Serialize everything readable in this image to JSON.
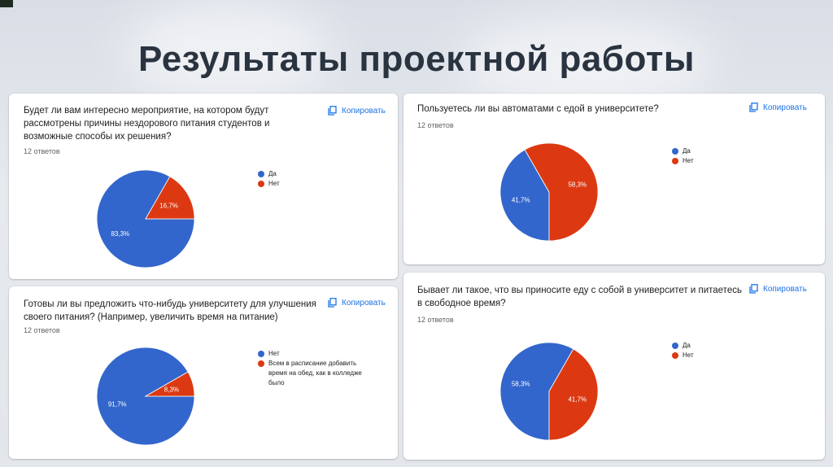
{
  "title": "Результаты проектной работы",
  "copy_label": "Копировать",
  "colors": {
    "blue": "#3366cc",
    "red": "#dc3912",
    "accent": "#1a73e8"
  },
  "charts": [
    {
      "question": "Будет ли вам интересно мероприятие, на котором будут рассмотрены причины нездорового питания студентов и возможные способы их решения?",
      "responses": "12 ответов",
      "legend": [
        "Да",
        "Нет"
      ],
      "labels": [
        "83,3%",
        "16,7%"
      ]
    },
    {
      "question": "Пользуетесь ли вы автоматами с едой в университете?",
      "responses": "12 ответов",
      "legend": [
        "Да",
        "Нет"
      ],
      "labels": [
        "41,7%",
        "58,3%"
      ]
    },
    {
      "question": "Готовы ли вы предложить что-нибудь университету для улучшения своего питания? (Например, увеличить время на питание)",
      "responses": "12 ответов",
      "legend": [
        "Нет",
        "Всем в расписание добавить время на обед, как в колледже было"
      ],
      "labels": [
        "91,7%",
        "8,3%"
      ]
    },
    {
      "question": "Бывает ли такое, что вы приносите еду с собой в университет и питаетесь в свободное время?",
      "responses": "12 ответов",
      "legend": [
        "Да",
        "Нет"
      ],
      "labels": [
        "58,3%",
        "41,7%"
      ]
    }
  ],
  "chart_data": [
    {
      "type": "pie",
      "categories": [
        "Да",
        "Нет"
      ],
      "values": [
        83.3,
        16.7
      ],
      "title": "Будет ли вам интересно мероприятие, на котором будут рассмотрены причины нездорового питания студентов и возможные способы их решения?"
    },
    {
      "type": "pie",
      "categories": [
        "Да",
        "Нет"
      ],
      "values": [
        41.7,
        58.3
      ],
      "title": "Пользуетесь ли вы автоматами с едой в университете?"
    },
    {
      "type": "pie",
      "categories": [
        "Нет",
        "Всем в расписание добавить время на обед, как в колледже было"
      ],
      "values": [
        91.7,
        8.3
      ],
      "title": "Готовы ли вы предложить что-нибудь университету для улучшения своего питания? (Например, увеличить время на питание)"
    },
    {
      "type": "pie",
      "categories": [
        "Да",
        "Нет"
      ],
      "values": [
        58.3,
        41.7
      ],
      "title": "Бывает ли такое, что вы приносите еду с собой в университет и питаетесь в свободное время?"
    }
  ]
}
